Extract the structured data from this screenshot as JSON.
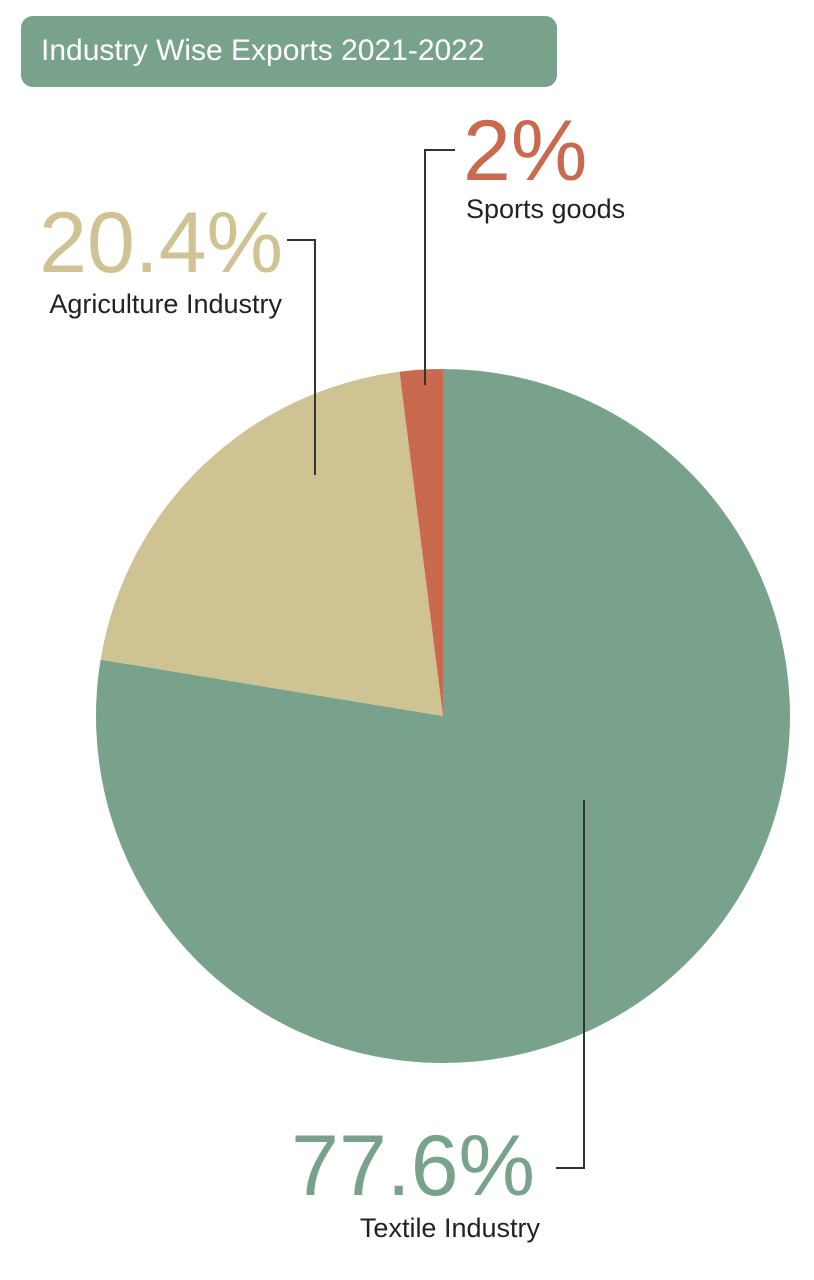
{
  "chart_data": {
    "type": "pie",
    "title": "Industry Wise Exports 2021-2022",
    "categories": [
      "Textile Industry",
      "Agriculture Industry",
      "Sports goods"
    ],
    "values": [
      77.6,
      20.4,
      2
    ],
    "value_labels": [
      "77.6%",
      "20.4%",
      "2%"
    ],
    "colors": [
      "#78a28b",
      "#d0c393",
      "#c96a4e"
    ]
  }
}
